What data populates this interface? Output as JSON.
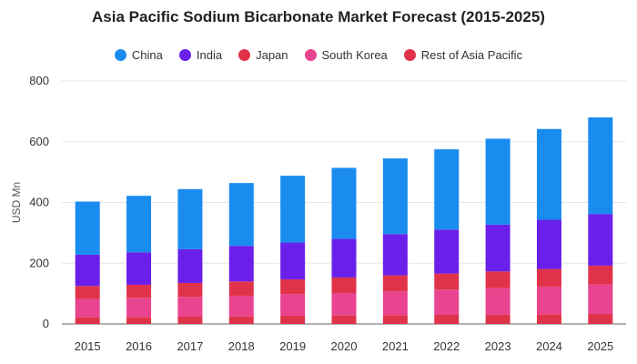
{
  "chart_data": {
    "type": "bar",
    "stacked": true,
    "title": "Asia Pacific Sodium Bicarbonate Market Forecast (2015-2025)",
    "xlabel": "",
    "ylabel": "USD Mn",
    "ylim": [
      0,
      800
    ],
    "yticks": [
      0,
      200,
      400,
      600,
      800
    ],
    "grid": true,
    "legend_position": "top-center",
    "categories": [
      "2015",
      "2016",
      "2017",
      "2018",
      "2019",
      "2020",
      "2021",
      "2022",
      "2023",
      "2024",
      "2025"
    ],
    "series": [
      {
        "name": "Rest of Asia Pacific",
        "color": "#e0334a",
        "values": [
          22,
          23,
          24,
          25,
          27,
          28,
          29,
          30,
          31,
          32,
          33
        ]
      },
      {
        "name": "South Korea",
        "color": "#e8448f",
        "values": [
          60,
          63,
          65,
          68,
          71,
          74,
          78,
          83,
          87,
          91,
          97
        ]
      },
      {
        "name": "Japan",
        "color": "#e0334a",
        "values": [
          43,
          43,
          46,
          47,
          49,
          51,
          53,
          53,
          55,
          58,
          62
        ]
      },
      {
        "name": "India",
        "color": "#6a1fea",
        "values": [
          103,
          107,
          111,
          117,
          121,
          127,
          136,
          145,
          154,
          162,
          170
        ]
      },
      {
        "name": "China",
        "color": "#1a8cf0",
        "values": [
          175,
          186,
          198,
          207,
          220,
          234,
          249,
          264,
          283,
          299,
          318
        ]
      }
    ],
    "legend_order": [
      "China",
      "India",
      "Japan",
      "South Korea",
      "Rest of Asia Pacific"
    ]
  }
}
